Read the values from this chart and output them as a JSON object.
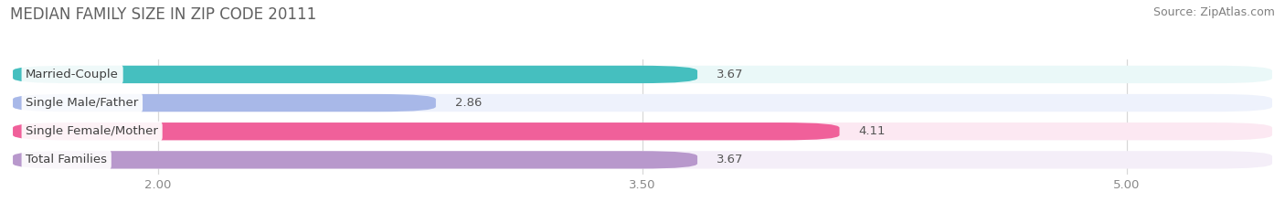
{
  "title": "MEDIAN FAMILY SIZE IN ZIP CODE 20111",
  "source": "Source: ZipAtlas.com",
  "categories": [
    "Married-Couple",
    "Single Male/Father",
    "Single Female/Mother",
    "Total Families"
  ],
  "values": [
    3.67,
    2.86,
    4.11,
    3.67
  ],
  "bar_colors": [
    "#45bfbf",
    "#a8b8e8",
    "#f0609a",
    "#b898cc"
  ],
  "bar_bg_colors": [
    "#eaf8f8",
    "#eef2fc",
    "#fce8f2",
    "#f4eef8"
  ],
  "xlim_min": 1.55,
  "xlim_max": 5.45,
  "xticks": [
    2.0,
    3.5,
    5.0
  ],
  "xtick_labels": [
    "2.00",
    "3.50",
    "5.00"
  ],
  "label_fontsize": 9.5,
  "value_fontsize": 9.5,
  "title_fontsize": 12,
  "source_fontsize": 9,
  "bar_height": 0.62,
  "bar_gap": 0.38,
  "bg_color": "#ffffff",
  "grid_color": "#d8d8d8",
  "title_color": "#606060",
  "source_color": "#808080",
  "label_color": "#404040",
  "value_color": "#555555"
}
